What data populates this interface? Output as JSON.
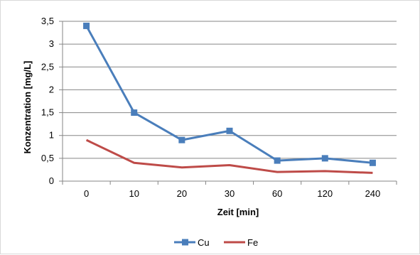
{
  "chart_data": {
    "type": "line",
    "categories": [
      "0",
      "10",
      "20",
      "30",
      "60",
      "120",
      "240"
    ],
    "series": [
      {
        "name": "Cu",
        "values": [
          3.4,
          1.5,
          0.9,
          1.1,
          0.45,
          0.5,
          0.4
        ],
        "color": "#4a7ebb",
        "marker": "square"
      },
      {
        "name": "Fe",
        "values": [
          0.9,
          0.4,
          0.3,
          0.35,
          0.2,
          0.22,
          0.18
        ],
        "color": "#be4b48",
        "marker": "none"
      }
    ],
    "title": "",
    "xlabel": "Zeit [min]",
    "ylabel": "Konzentration [mg/L]",
    "ylim": [
      0,
      3.5
    ],
    "yticks": [
      "0",
      "0,5",
      "1",
      "1,5",
      "2",
      "2,5",
      "3",
      "3,5"
    ],
    "grid": true,
    "legend_position": "bottom"
  }
}
